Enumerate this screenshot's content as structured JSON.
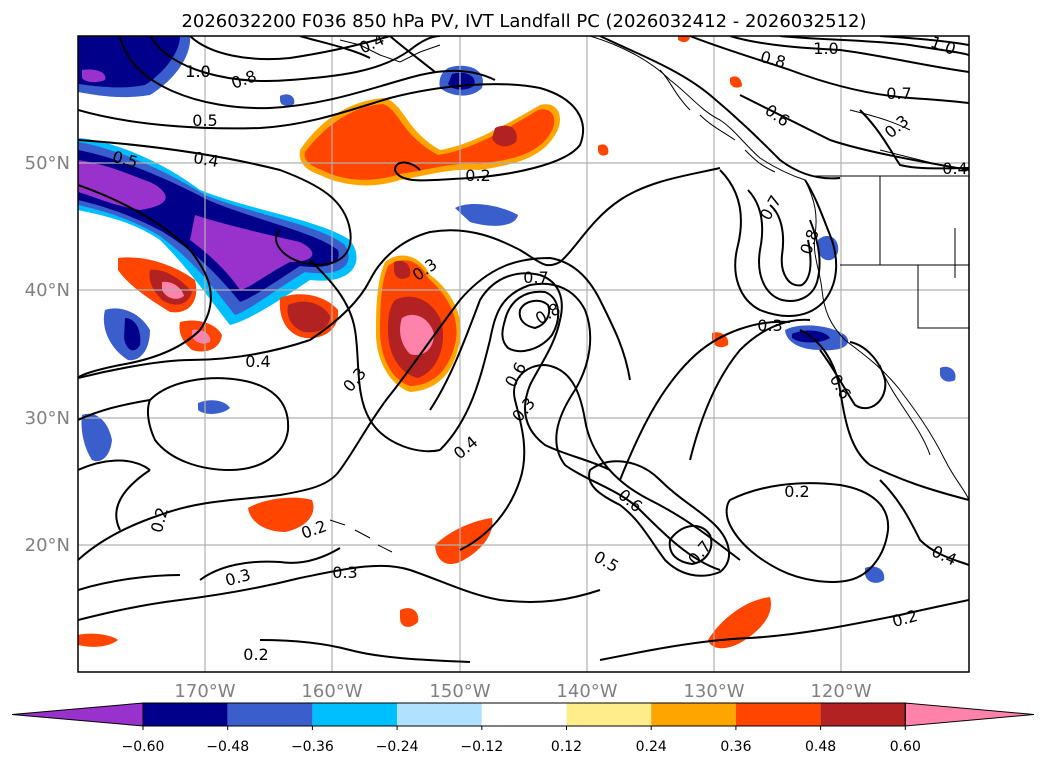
{
  "title": "2026032200 F036 850 hPa PV, IVT Landfall PC (2026032412 - 2026032512)",
  "map": {
    "lon_ticks": [
      "170°W",
      "160°W",
      "150°W",
      "140°W",
      "130°W",
      "120°W"
    ],
    "lat_ticks": [
      "50°N",
      "40°N",
      "30°N",
      "20°N"
    ],
    "gridlines": true
  },
  "colorbar": {
    "ticks": [
      "−0.60",
      "−0.48",
      "−0.36",
      "−0.24",
      "−0.12",
      "0.12",
      "0.24",
      "0.36",
      "0.48",
      "0.60"
    ],
    "colors": [
      "#9932cc",
      "#00008b",
      "#3a5fcd",
      "#00bfff",
      "#b0e2ff",
      "#ffffff",
      "#ffec8b",
      "#ffa500",
      "#ff4500",
      "#b22222",
      "#ff82ab"
    ],
    "extend": "both"
  },
  "contour_labels": [
    "1.0",
    "0.8",
    "0.5",
    "0.4",
    "0.5",
    "0.4",
    "0.2",
    "0.3",
    "0.7",
    "0.8",
    "0.6",
    "0.3",
    "0.4",
    "0.3",
    "0.4",
    "0.2",
    "0.3",
    "0.3",
    "0.2",
    "0.2",
    "0.6",
    "0.5",
    "0.7",
    "0.2",
    "0.4",
    "0.2",
    "1.0",
    "0.8",
    "0.7",
    "0.6",
    "0.3",
    "0.4",
    "0.7",
    "0.8",
    "0.3",
    "0.6",
    "1.0",
    "1.0"
  ]
}
